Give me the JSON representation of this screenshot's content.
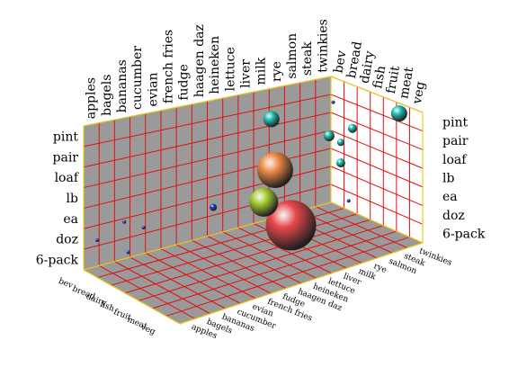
{
  "chart_data": {
    "type": "scatter",
    "categories_x": [
      "apples",
      "bagels",
      "bananas",
      "cucumber",
      "evian",
      "french fries",
      "fudge",
      "haagen daz",
      "heineken",
      "lettuce",
      "liver",
      "milk",
      "rye",
      "salmon",
      "steak",
      "twinkies"
    ],
    "categories_y": [
      "6-pack",
      "doz",
      "ea",
      "lb",
      "loaf",
      "pair",
      "pint"
    ],
    "categories_z": [
      "bev",
      "bread",
      "dairy",
      "fish",
      "fruit",
      "meat",
      "veg"
    ],
    "points": [
      {
        "x": "apples",
        "y": "doz",
        "z": "bev",
        "size": 2,
        "color": "#2233cc"
      },
      {
        "x": "bananas",
        "y": "6-pack",
        "z": "bev",
        "size": 2,
        "color": "#2233cc"
      },
      {
        "x": "bagels",
        "y": "ea",
        "z": "bread",
        "size": 2,
        "color": "#2233cc"
      },
      {
        "x": "cucumber",
        "y": "doz",
        "z": "bev",
        "size": 2,
        "color": "#2233cc"
      },
      {
        "x": "fudge",
        "y": "ea",
        "z": "dairy",
        "size": 4,
        "color": "#2233cc"
      },
      {
        "x": "fudge",
        "y": "lb",
        "z": "veg",
        "size": 2,
        "color": "#2233cc"
      },
      {
        "x": "heineken",
        "y": "ea",
        "z": "veg",
        "size": 28,
        "color": "#e8484d"
      },
      {
        "x": "haagen daz",
        "y": "lb",
        "z": "meat",
        "size": 16,
        "color": "#aad232"
      },
      {
        "x": "lettuce",
        "y": "pint",
        "z": "fish",
        "size": 9,
        "color": "#22c4b8"
      },
      {
        "x": "liver",
        "y": "lb",
        "z": "dairy",
        "size": 20,
        "color": "#f08c46"
      },
      {
        "x": "salmon",
        "y": "pint",
        "z": "fish",
        "size": 2,
        "color": "#2233cc"
      },
      {
        "x": "steak",
        "y": "doz",
        "z": "fish",
        "size": 2,
        "color": "#2233cc"
      },
      {
        "x": "twinkies",
        "y": "ea",
        "z": "bread",
        "size": 5,
        "color": "#22c4b8"
      },
      {
        "x": "twinkies",
        "y": "lb",
        "z": "bev",
        "size": 6,
        "color": "#22c4b8"
      },
      {
        "x": "twinkies",
        "y": "pint",
        "z": "veg",
        "size": 9,
        "color": "#22c4b8"
      },
      {
        "x": "twinkies",
        "y": "lb",
        "z": "bread",
        "size": 4,
        "color": "#22c4b8"
      },
      {
        "x": "twinkies",
        "y": "loaf",
        "z": "dairy",
        "size": 5,
        "color": "#22c4b8"
      }
    ],
    "wall_color": "#9a9a9a",
    "grid_color": "#e01010",
    "frame_color": "#e8d020",
    "grid": true
  }
}
